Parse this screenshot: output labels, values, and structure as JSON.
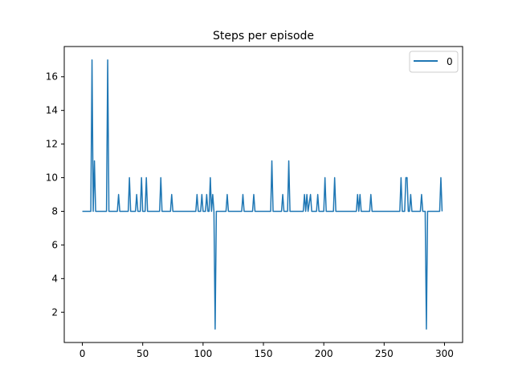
{
  "chart_data": {
    "type": "line",
    "title": "Steps per episode",
    "xlabel": "",
    "ylabel": "",
    "xlim": [
      -15,
      315
    ],
    "ylim": [
      0.2,
      17.8
    ],
    "xticks": [
      0,
      50,
      100,
      150,
      200,
      250,
      300
    ],
    "yticks": [
      2,
      4,
      6,
      8,
      10,
      12,
      14,
      16
    ],
    "grid": false,
    "legend_position": "top-right",
    "colors": {
      "series": "#1f77b4",
      "axes": "#000000"
    },
    "series": [
      {
        "name": "0",
        "points": [
          [
            0,
            8
          ],
          [
            7,
            8
          ],
          [
            8,
            17
          ],
          [
            9,
            8
          ],
          [
            10,
            11
          ],
          [
            11,
            8
          ],
          [
            20,
            8
          ],
          [
            21,
            17
          ],
          [
            22,
            8
          ],
          [
            29,
            8
          ],
          [
            30,
            9
          ],
          [
            31,
            8
          ],
          [
            38,
            8
          ],
          [
            39,
            10
          ],
          [
            40,
            8
          ],
          [
            44,
            8
          ],
          [
            45,
            9
          ],
          [
            46,
            8
          ],
          [
            48,
            8
          ],
          [
            49,
            10
          ],
          [
            50,
            8
          ],
          [
            52,
            8
          ],
          [
            53,
            10
          ],
          [
            54,
            8
          ],
          [
            64,
            8
          ],
          [
            65,
            10
          ],
          [
            66,
            8
          ],
          [
            73,
            8
          ],
          [
            74,
            9
          ],
          [
            75,
            8
          ],
          [
            94,
            8
          ],
          [
            95,
            9
          ],
          [
            96,
            8
          ],
          [
            98,
            8
          ],
          [
            99,
            9
          ],
          [
            100,
            8
          ],
          [
            102,
            8
          ],
          [
            103,
            9
          ],
          [
            104,
            8
          ],
          [
            105,
            8
          ],
          [
            106,
            10
          ],
          [
            107,
            8
          ],
          [
            108,
            9
          ],
          [
            109,
            8
          ],
          [
            110,
            1
          ],
          [
            111,
            8
          ],
          [
            119,
            8
          ],
          [
            120,
            9
          ],
          [
            121,
            8
          ],
          [
            132,
            8
          ],
          [
            133,
            9
          ],
          [
            134,
            8
          ],
          [
            141,
            8
          ],
          [
            142,
            9
          ],
          [
            143,
            8
          ],
          [
            156,
            8
          ],
          [
            157,
            11
          ],
          [
            158,
            8
          ],
          [
            165,
            8
          ],
          [
            166,
            9
          ],
          [
            167,
            8
          ],
          [
            170,
            8
          ],
          [
            171,
            11
          ],
          [
            172,
            8
          ],
          [
            183,
            8
          ],
          [
            184,
            9
          ],
          [
            185,
            8
          ],
          [
            186,
            9
          ],
          [
            187,
            8
          ],
          [
            189,
            9
          ],
          [
            190,
            8
          ],
          [
            194,
            8
          ],
          [
            195,
            9
          ],
          [
            196,
            8
          ],
          [
            200,
            8
          ],
          [
            201,
            10
          ],
          [
            202,
            8
          ],
          [
            208,
            8
          ],
          [
            209,
            10
          ],
          [
            210,
            8
          ],
          [
            227,
            8
          ],
          [
            228,
            9
          ],
          [
            229,
            8
          ],
          [
            230,
            9
          ],
          [
            231,
            8
          ],
          [
            238,
            8
          ],
          [
            239,
            9
          ],
          [
            240,
            8
          ],
          [
            263,
            8
          ],
          [
            264,
            10
          ],
          [
            265,
            8
          ],
          [
            267,
            8
          ],
          [
            268,
            10
          ],
          [
            269,
            10
          ],
          [
            270,
            8
          ],
          [
            271,
            8
          ],
          [
            272,
            9
          ],
          [
            273,
            8
          ],
          [
            280,
            8
          ],
          [
            281,
            9
          ],
          [
            282,
            8
          ],
          [
            284,
            8
          ],
          [
            285,
            1
          ],
          [
            286,
            8
          ],
          [
            296,
            8
          ],
          [
            297,
            10
          ],
          [
            298,
            8
          ]
        ]
      }
    ]
  }
}
